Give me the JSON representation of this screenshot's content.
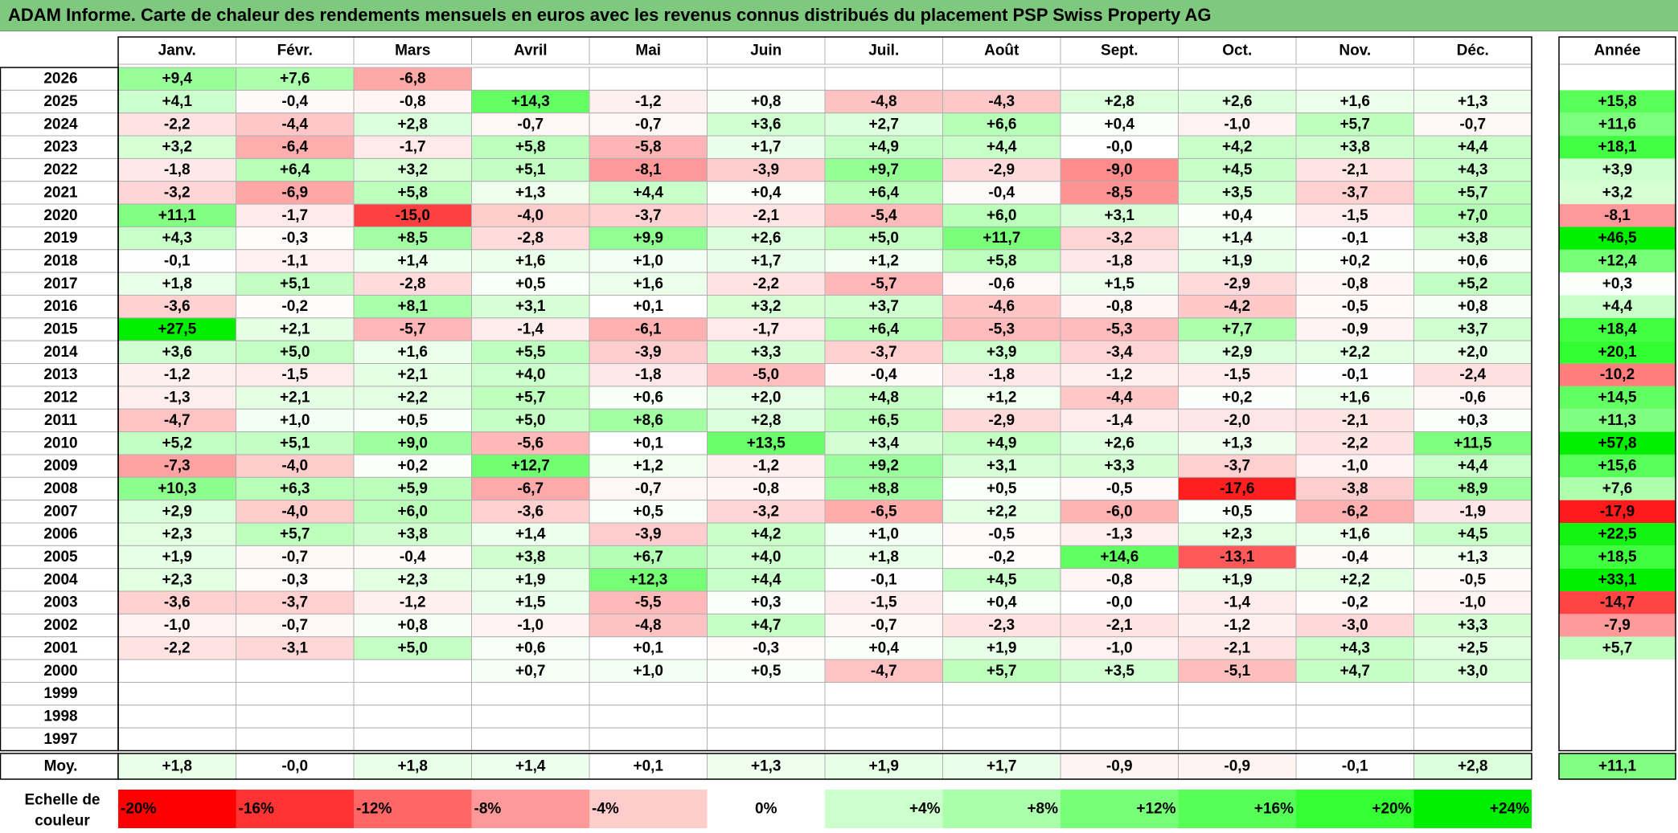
{
  "title": "ADAM Informe. Carte de chaleur des rendements mensuels en euros avec les revenus connus distribués du placement PSP Swiss Property AG",
  "chart_data": {
    "type": "heatmap",
    "title": "ADAM Informe. Carte de chaleur des rendements mensuels en euros avec les revenus connus distribués du placement PSP Swiss Property AG",
    "months": [
      "Janv.",
      "Févr.",
      "Mars",
      "Avril",
      "Mai",
      "Juin",
      "Juil.",
      "Août",
      "Sept.",
      "Oct.",
      "Nov.",
      "Déc."
    ],
    "annual_header": "Année",
    "rows": [
      {
        "year": "2026",
        "values": [
          "+9,4",
          "+7,6",
          "-6,8",
          "",
          "",
          "",
          "",
          "",
          "",
          "",
          "",
          ""
        ],
        "annual": ""
      },
      {
        "year": "2025",
        "values": [
          "+4,1",
          "-0,4",
          "-0,8",
          "+14,3",
          "-1,2",
          "+0,8",
          "-4,8",
          "-4,3",
          "+2,8",
          "+2,6",
          "+1,6",
          "+1,3"
        ],
        "annual": "+15,8"
      },
      {
        "year": "2024",
        "values": [
          "-2,2",
          "-4,4",
          "+2,8",
          "-0,7",
          "-0,7",
          "+3,6",
          "+2,7",
          "+6,6",
          "+0,4",
          "-1,0",
          "+5,7",
          "-0,7"
        ],
        "annual": "+11,6"
      },
      {
        "year": "2023",
        "values": [
          "+3,2",
          "-6,4",
          "-1,7",
          "+5,8",
          "-5,8",
          "+1,7",
          "+4,9",
          "+4,4",
          "-0,0",
          "+4,2",
          "+3,8",
          "+4,4"
        ],
        "annual": "+18,1"
      },
      {
        "year": "2022",
        "values": [
          "-1,8",
          "+6,4",
          "+3,2",
          "+5,1",
          "-8,1",
          "-3,9",
          "+9,7",
          "-2,9",
          "-9,0",
          "+4,5",
          "-2,1",
          "+4,3"
        ],
        "annual": "+3,9"
      },
      {
        "year": "2021",
        "values": [
          "-3,2",
          "-6,9",
          "+5,8",
          "+1,3",
          "+4,4",
          "+0,4",
          "+6,4",
          "-0,4",
          "-8,5",
          "+3,5",
          "-3,7",
          "+5,7"
        ],
        "annual": "+3,2"
      },
      {
        "year": "2020",
        "values": [
          "+11,1",
          "-1,7",
          "-15,0",
          "-4,0",
          "-3,7",
          "-2,1",
          "-5,4",
          "+6,0",
          "+3,1",
          "+0,4",
          "-1,5",
          "+7,0"
        ],
        "annual": "-8,1"
      },
      {
        "year": "2019",
        "values": [
          "+4,3",
          "-0,3",
          "+8,5",
          "-2,8",
          "+9,9",
          "+2,6",
          "+5,0",
          "+11,7",
          "-3,2",
          "+1,4",
          "-0,1",
          "+3,8"
        ],
        "annual": "+46,5"
      },
      {
        "year": "2018",
        "values": [
          "-0,1",
          "-1,1",
          "+1,4",
          "+1,6",
          "+1,0",
          "+1,7",
          "+1,2",
          "+5,8",
          "-1,8",
          "+1,9",
          "+0,2",
          "+0,6"
        ],
        "annual": "+12,4"
      },
      {
        "year": "2017",
        "values": [
          "+1,8",
          "+5,1",
          "-2,8",
          "+0,5",
          "+1,6",
          "-2,2",
          "-5,7",
          "-0,6",
          "+1,5",
          "-2,9",
          "-0,8",
          "+5,2"
        ],
        "annual": "+0,3"
      },
      {
        "year": "2016",
        "values": [
          "-3,6",
          "-0,2",
          "+8,1",
          "+3,1",
          "+0,1",
          "+3,2",
          "+3,7",
          "-4,6",
          "-0,8",
          "-4,2",
          "-0,5",
          "+0,8"
        ],
        "annual": "+4,4"
      },
      {
        "year": "2015",
        "values": [
          "+27,5",
          "+2,1",
          "-5,7",
          "-1,4",
          "-6,1",
          "-1,7",
          "+6,4",
          "-5,3",
          "-5,3",
          "+7,7",
          "-0,9",
          "+3,7"
        ],
        "annual": "+18,4"
      },
      {
        "year": "2014",
        "values": [
          "+3,6",
          "+5,0",
          "+1,6",
          "+5,5",
          "-3,9",
          "+3,3",
          "-3,7",
          "+3,9",
          "-3,4",
          "+2,9",
          "+2,2",
          "+2,0"
        ],
        "annual": "+20,1"
      },
      {
        "year": "2013",
        "values": [
          "-1,2",
          "-1,5",
          "+2,1",
          "+4,0",
          "-1,8",
          "-5,0",
          "-0,4",
          "-1,8",
          "-1,2",
          "-1,5",
          "-0,1",
          "-2,4"
        ],
        "annual": "-10,2"
      },
      {
        "year": "2012",
        "values": [
          "-1,3",
          "+2,1",
          "+2,2",
          "+5,7",
          "+0,6",
          "+2,0",
          "+4,8",
          "+1,2",
          "-4,4",
          "+0,2",
          "+1,6",
          "-0,6"
        ],
        "annual": "+14,5"
      },
      {
        "year": "2011",
        "values": [
          "-4,7",
          "+1,0",
          "+0,5",
          "+5,0",
          "+8,6",
          "+2,8",
          "+6,5",
          "-2,9",
          "-1,4",
          "-2,0",
          "-2,1",
          "+0,3"
        ],
        "annual": "+11,3"
      },
      {
        "year": "2010",
        "values": [
          "+5,2",
          "+5,1",
          "+9,0",
          "-5,6",
          "+0,1",
          "+13,5",
          "+3,4",
          "+4,9",
          "+2,6",
          "+1,3",
          "-2,2",
          "+11,5"
        ],
        "annual": "+57,8"
      },
      {
        "year": "2009",
        "values": [
          "-7,3",
          "-4,0",
          "+0,2",
          "+12,7",
          "+1,2",
          "-1,2",
          "+9,2",
          "+3,1",
          "+3,3",
          "-3,7",
          "-1,0",
          "+4,4"
        ],
        "annual": "+15,6"
      },
      {
        "year": "2008",
        "values": [
          "+10,3",
          "+6,3",
          "+5,9",
          "-6,7",
          "-0,7",
          "-0,8",
          "+8,8",
          "+0,5",
          "-0,5",
          "-17,6",
          "-3,8",
          "+8,9"
        ],
        "annual": "+7,6"
      },
      {
        "year": "2007",
        "values": [
          "+2,9",
          "-4,0",
          "+6,0",
          "-3,6",
          "+0,5",
          "-3,2",
          "-6,5",
          "+2,2",
          "-6,0",
          "+0,5",
          "-6,2",
          "-1,9"
        ],
        "annual": "-17,9"
      },
      {
        "year": "2006",
        "values": [
          "+2,3",
          "+5,7",
          "+3,8",
          "+1,4",
          "-3,9",
          "+4,2",
          "+1,0",
          "-0,5",
          "-1,3",
          "+2,3",
          "+1,6",
          "+4,5"
        ],
        "annual": "+22,5"
      },
      {
        "year": "2005",
        "values": [
          "+1,9",
          "-0,7",
          "-0,4",
          "+3,8",
          "+6,7",
          "+4,0",
          "+1,8",
          "-0,2",
          "+14,6",
          "-13,1",
          "-0,4",
          "+1,3"
        ],
        "annual": "+18,5"
      },
      {
        "year": "2004",
        "values": [
          "+2,3",
          "-0,3",
          "+2,3",
          "+1,9",
          "+12,3",
          "+4,4",
          "-0,1",
          "+4,5",
          "-0,8",
          "+1,9",
          "+2,2",
          "-0,5"
        ],
        "annual": "+33,1"
      },
      {
        "year": "2003",
        "values": [
          "-3,6",
          "-3,7",
          "-1,2",
          "+1,5",
          "-5,5",
          "+0,3",
          "-1,5",
          "+0,4",
          "-0,0",
          "-1,4",
          "-0,2",
          "-1,0"
        ],
        "annual": "-14,7"
      },
      {
        "year": "2002",
        "values": [
          "-1,0",
          "-0,7",
          "+0,8",
          "-1,0",
          "-4,8",
          "+4,7",
          "-0,7",
          "-2,3",
          "-2,1",
          "-1,2",
          "-3,0",
          "+3,3"
        ],
        "annual": "-7,9"
      },
      {
        "year": "2001",
        "values": [
          "-2,2",
          "-3,1",
          "+5,0",
          "+0,6",
          "+0,1",
          "-0,3",
          "+0,4",
          "+1,9",
          "-1,0",
          "-2,1",
          "+4,3",
          "+2,5"
        ],
        "annual": "+5,7"
      },
      {
        "year": "2000",
        "values": [
          "",
          "",
          "",
          "+0,7",
          "+1,0",
          "+0,5",
          "-4,7",
          "+5,7",
          "+3,5",
          "-5,1",
          "+4,7",
          "+3,0"
        ],
        "annual": ""
      },
      {
        "year": "1999",
        "values": [
          "",
          "",
          "",
          "",
          "",
          "",
          "",
          "",
          "",
          "",
          "",
          ""
        ],
        "annual": ""
      },
      {
        "year": "1998",
        "values": [
          "",
          "",
          "",
          "",
          "",
          "",
          "",
          "",
          "",
          "",
          "",
          ""
        ],
        "annual": ""
      },
      {
        "year": "1997",
        "values": [
          "",
          "",
          "",
          "",
          "",
          "",
          "",
          "",
          "",
          "",
          "",
          ""
        ],
        "annual": ""
      }
    ],
    "average": {
      "label": "Moy.",
      "values": [
        "+1,8",
        "-0,0",
        "+1,8",
        "+1,4",
        "+0,1",
        "+1,3",
        "+1,9",
        "+1,7",
        "-0,9",
        "-0,9",
        "-0,1",
        "+2,8"
      ],
      "annual": "+11,1"
    },
    "color_scale": {
      "label_line1": "Echelle de",
      "label_line2": "couleur",
      "stops": [
        {
          "label": "-20%",
          "value": -20,
          "color": "#ff0000"
        },
        {
          "label": "-16%",
          "value": -16,
          "color": "#ff3333"
        },
        {
          "label": "-12%",
          "value": -12,
          "color": "#ff6666"
        },
        {
          "label": "-8%",
          "value": -8,
          "color": "#ff9999"
        },
        {
          "label": "-4%",
          "value": -4,
          "color": "#ffcccc"
        },
        {
          "label": "0%",
          "value": 0,
          "color": "#ffffff"
        },
        {
          "label": "+4%",
          "value": 4,
          "color": "#ccffcc"
        },
        {
          "label": "+8%",
          "value": 8,
          "color": "#aaffaa"
        },
        {
          "label": "+12%",
          "value": 12,
          "color": "#77ff77"
        },
        {
          "label": "+16%",
          "value": 16,
          "color": "#55ff55"
        },
        {
          "label": "+20%",
          "value": 20,
          "color": "#33ff33"
        },
        {
          "label": "+24%",
          "value": 24,
          "color": "#00ee00"
        }
      ]
    },
    "colors": {
      "title_bar": "#7fc97f",
      "grid": "#b0b0b0",
      "border": "#000000"
    }
  }
}
